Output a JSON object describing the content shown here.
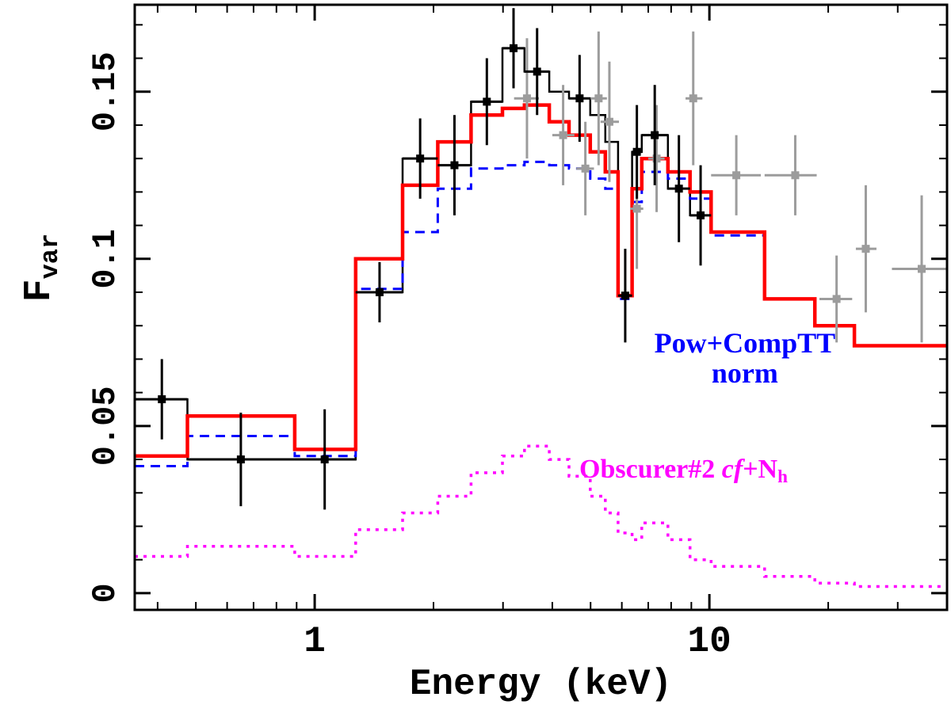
{
  "chart_data": {
    "type": "line",
    "title": "",
    "xlabel": "Energy (keV)",
    "ylabel": "F_var",
    "ylabel_parts": {
      "main": "F",
      "sub": "var"
    },
    "xscale": "log",
    "yscale": "linear",
    "xlim": [
      0.35,
      40
    ],
    "ylim": [
      -0.005,
      0.176
    ],
    "xticks": [
      1,
      10
    ],
    "xtick_labels": [
      "1",
      "10"
    ],
    "xminor_ticks": [
      0.4,
      0.5,
      0.6,
      0.7,
      0.8,
      0.9,
      2,
      3,
      4,
      5,
      6,
      7,
      8,
      9,
      20,
      30
    ],
    "yticks": [
      0,
      0.05,
      0.1,
      0.15
    ],
    "ytick_labels": [
      "0",
      "0.05",
      "0.1",
      "0.15"
    ],
    "yminor_step": 0.01,
    "grid": false,
    "frame_color": "#000000",
    "bin_edges": [
      0.35,
      0.476,
      0.89,
      1.27,
      1.67,
      2.05,
      2.49,
      2.99,
      3.4,
      3.93,
      4.41,
      4.99,
      5.45,
      5.87,
      6.37,
      6.74,
      7.85,
      8.93,
      10.1,
      13.8,
      18.5,
      23.3,
      40
    ],
    "series": [
      {
        "id": "black-data-histogram",
        "label": "binned Fvar spectrum (black)",
        "type": "step",
        "color": "#000000",
        "width": 2.5,
        "dash": null,
        "edges": [
          0.35,
          0.476,
          0.89,
          1.27,
          1.67,
          2.05,
          2.49,
          2.99,
          3.4,
          3.93,
          4.41,
          4.99,
          5.45,
          5.87,
          6.37,
          6.74,
          7.85,
          8.93,
          10.1
        ],
        "values": [
          0.058,
          0.04,
          0.04,
          0.09,
          0.13,
          0.128,
          0.147,
          0.163,
          0.156,
          0.15,
          0.148,
          0.143,
          0.135,
          0.089,
          0.132,
          0.137,
          0.121,
          0.113
        ]
      },
      {
        "id": "pow-comptt-norm",
        "label": "Pow+CompTT norm",
        "type": "step",
        "color": "#0000ff",
        "width": 3,
        "dash": "12 8",
        "edges": "shared",
        "values": [
          0.038,
          0.047,
          0.041,
          0.091,
          0.108,
          0.121,
          0.127,
          0.128,
          0.129,
          0.128,
          0.127,
          0.124,
          0.121,
          0.088,
          0.117,
          0.126,
          0.124,
          0.118,
          0.107,
          0.088,
          0.08,
          0.074
        ]
      },
      {
        "id": "obscurer2-cf-nh",
        "label": "Obscurer#2 cf+Nh",
        "type": "step",
        "color": "#ff00ff",
        "width": 3.5,
        "dash": "4 7",
        "edges": "shared",
        "values": [
          0.011,
          0.014,
          0.011,
          0.019,
          0.024,
          0.029,
          0.036,
          0.041,
          0.044,
          0.04,
          0.035,
          0.029,
          0.024,
          0.018,
          0.016,
          0.021,
          0.016,
          0.01,
          0.008,
          0.005,
          0.003,
          0.002
        ]
      },
      {
        "id": "total-model",
        "label": "total model (red)",
        "type": "step",
        "color": "#ff0000",
        "width": 4.5,
        "dash": null,
        "edges": "shared",
        "values": [
          0.041,
          0.053,
          0.043,
          0.1,
          0.122,
          0.135,
          0.143,
          0.145,
          0.146,
          0.141,
          0.137,
          0.132,
          0.126,
          0.089,
          0.121,
          0.13,
          0.126,
          0.12,
          0.108,
          0.088,
          0.08,
          0.074
        ]
      },
      {
        "id": "gray-points",
        "label": "Fvar data (gray, high-energy instrument)",
        "type": "points",
        "color": "#9c9c9c",
        "marker": "square",
        "marker_size": 10,
        "points": [
          {
            "x": 3.45,
            "y": 0.148,
            "yerr": 0.018,
            "xlo": 3.2,
            "xhi": 3.7
          },
          {
            "x": 4.26,
            "y": 0.137,
            "yerr": 0.015,
            "xlo": 4.0,
            "xhi": 4.55
          },
          {
            "x": 4.85,
            "y": 0.127,
            "yerr": 0.014,
            "xlo": 4.6,
            "xhi": 5.1
          },
          {
            "x": 5.24,
            "y": 0.148,
            "yerr": 0.02,
            "xlo": 5.0,
            "xhi": 5.5
          },
          {
            "x": 5.58,
            "y": 0.141,
            "yerr": 0.018,
            "xlo": 5.3,
            "xhi": 5.9
          },
          {
            "x": 6.55,
            "y": 0.115,
            "yerr": 0.018,
            "xlo": 6.3,
            "xhi": 6.8
          },
          {
            "x": 7.35,
            "y": 0.13,
            "yerr": 0.016,
            "xlo": 7.0,
            "xhi": 7.7
          },
          {
            "x": 9.1,
            "y": 0.148,
            "yerr": 0.02,
            "xlo": 8.7,
            "xhi": 9.6
          },
          {
            "x": 11.7,
            "y": 0.125,
            "yerr": 0.012,
            "xlo": 10.1,
            "xhi": 13.5
          },
          {
            "x": 16.5,
            "y": 0.125,
            "yerr": 0.012,
            "xlo": 13.8,
            "xhi": 18.7
          },
          {
            "x": 21.0,
            "y": 0.088,
            "yerr": 0.013,
            "xlo": 19.0,
            "xhi": 23.0
          },
          {
            "x": 24.9,
            "y": 0.103,
            "yerr": 0.019,
            "xlo": 23.5,
            "xhi": 26.5
          },
          {
            "x": 34.5,
            "y": 0.097,
            "yerr": 0.022,
            "xlo": 29.0,
            "xhi": 40.0
          }
        ]
      },
      {
        "id": "black-points",
        "label": "Fvar data (black)",
        "type": "points",
        "color": "#000000",
        "marker": "square",
        "marker_size": 10,
        "points": [
          {
            "x": 0.41,
            "y": 0.058,
            "yerr": 0.012,
            "xlo": 0.35,
            "xhi": 0.476
          },
          {
            "x": 0.65,
            "y": 0.04,
            "yerr": 0.014,
            "xlo": 0.476,
            "xhi": 0.89
          },
          {
            "x": 1.06,
            "y": 0.04,
            "yerr": 0.015,
            "xlo": 0.89,
            "xhi": 1.27
          },
          {
            "x": 1.46,
            "y": 0.09,
            "yerr": 0.009,
            "xlo": 1.27,
            "xhi": 1.67
          },
          {
            "x": 1.85,
            "y": 0.13,
            "yerr": 0.012,
            "xlo": 1.67,
            "xhi": 2.05
          },
          {
            "x": 2.26,
            "y": 0.128,
            "yerr": 0.015,
            "xlo": 2.05,
            "xhi": 2.49
          },
          {
            "x": 2.73,
            "y": 0.147,
            "yerr": 0.013,
            "xlo": 2.49,
            "xhi": 2.99
          },
          {
            "x": 3.19,
            "y": 0.163,
            "yerr": 0.012,
            "xlo": 2.99,
            "xhi": 3.4
          },
          {
            "x": 3.66,
            "y": 0.156,
            "yerr": 0.013,
            "xlo": 3.4,
            "xhi": 3.93
          },
          {
            "x": 4.69,
            "y": 0.148,
            "yerr": 0.013,
            "xlo": 4.41,
            "xhi": 4.99
          },
          {
            "x": 6.12,
            "y": 0.089,
            "yerr": 0.014,
            "xlo": 5.87,
            "xhi": 6.37
          },
          {
            "x": 6.55,
            "y": 0.132,
            "yerr": 0.014,
            "xlo": 6.37,
            "xhi": 6.74
          },
          {
            "x": 7.27,
            "y": 0.137,
            "yerr": 0.015,
            "xlo": 6.74,
            "xhi": 7.85
          },
          {
            "x": 8.37,
            "y": 0.121,
            "yerr": 0.016,
            "xlo": 7.85,
            "xhi": 8.93
          },
          {
            "x": 9.5,
            "y": 0.113,
            "yerr": 0.015,
            "xlo": 8.93,
            "xhi": 10.1
          }
        ]
      }
    ],
    "annotations": [
      {
        "id": "pow-comptt",
        "lines": [
          "Pow+CompTT",
          "norm"
        ],
        "color": "#0000ff",
        "x": 12.3,
        "y": 0.07
      },
      {
        "id": "obscurer",
        "prefix": "Obscurer#2 ",
        "italic": "cf",
        "plus": "+N",
        "sub": "h",
        "color": "#ff00ff",
        "x": 8.6,
        "y": 0.0365
      }
    ]
  }
}
